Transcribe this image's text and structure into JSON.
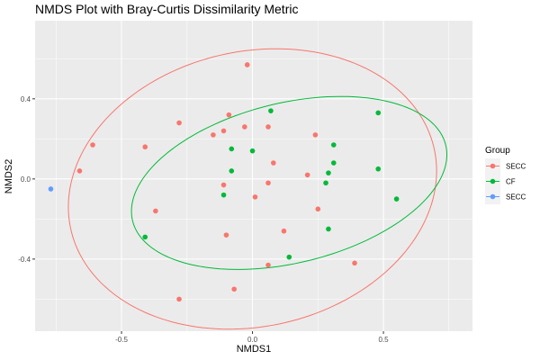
{
  "chart_data": {
    "type": "scatter",
    "title": "NMDS Plot with Bray-Curtis Dissimilarity Metric",
    "xlabel": "NMDS1",
    "ylabel": "NMDS2",
    "xlim": [
      -0.83,
      0.84
    ],
    "ylim": [
      -0.76,
      0.79
    ],
    "x_ticks": [
      {
        "value": -0.5,
        "label": "-0.5"
      },
      {
        "value": 0.0,
        "label": "0.0"
      },
      {
        "value": 0.5,
        "label": "0.5"
      }
    ],
    "y_ticks": [
      {
        "value": -0.4,
        "label": "-0.4"
      },
      {
        "value": 0.0,
        "label": "0.0"
      },
      {
        "value": 0.4,
        "label": "0.4"
      }
    ],
    "grid": true,
    "background": "#ebebeb",
    "legend": {
      "title": "Group",
      "position": "right",
      "entries": [
        {
          "label": "SECC",
          "color": "#f8766d"
        },
        {
          "label": "CF",
          "color": "#00ba38"
        },
        {
          "label": "SECC",
          "color": "#619cff"
        }
      ]
    },
    "series": [
      {
        "name": "SECC",
        "color": "#f8766d",
        "points": [
          [
            -0.02,
            0.57
          ],
          [
            -0.28,
            0.28
          ],
          [
            -0.09,
            0.32
          ],
          [
            -0.11,
            0.24
          ],
          [
            -0.15,
            0.22
          ],
          [
            -0.03,
            0.26
          ],
          [
            0.06,
            0.26
          ],
          [
            0.24,
            0.22
          ],
          [
            -0.61,
            0.17
          ],
          [
            -0.41,
            0.16
          ],
          [
            -0.66,
            0.04
          ],
          [
            0.08,
            0.08
          ],
          [
            0.21,
            0.02
          ],
          [
            -0.11,
            -0.03
          ],
          [
            0.06,
            -0.02
          ],
          [
            0.01,
            -0.09
          ],
          [
            -0.37,
            -0.16
          ],
          [
            0.25,
            -0.15
          ],
          [
            -0.1,
            -0.28
          ],
          [
            0.12,
            -0.26
          ],
          [
            0.06,
            -0.43
          ],
          [
            0.39,
            -0.42
          ],
          [
            -0.07,
            -0.55
          ],
          [
            -0.28,
            -0.6
          ]
        ]
      },
      {
        "name": "CF",
        "color": "#00ba38",
        "points": [
          [
            0.07,
            0.34
          ],
          [
            0.48,
            0.33
          ],
          [
            0.31,
            0.17
          ],
          [
            -0.08,
            0.15
          ],
          [
            0.0,
            0.14
          ],
          [
            0.31,
            0.08
          ],
          [
            0.48,
            0.05
          ],
          [
            0.29,
            0.03
          ],
          [
            -0.08,
            0.04
          ],
          [
            0.28,
            -0.02
          ],
          [
            -0.11,
            -0.08
          ],
          [
            0.55,
            -0.1
          ],
          [
            0.29,
            -0.25
          ],
          [
            -0.41,
            -0.29
          ],
          [
            0.14,
            -0.39
          ]
        ]
      },
      {
        "name": "SECC",
        "color": "#619cff",
        "points": [
          [
            -0.77,
            -0.05
          ]
        ]
      }
    ],
    "ellipses": [
      {
        "series": "SECC",
        "color": "#f8766d",
        "center": [
          0.0,
          -0.05
        ],
        "rx": 0.655,
        "ry": 0.745,
        "rotation_deg": -46
      },
      {
        "series": "CF",
        "color": "#00ba38",
        "center": [
          0.14,
          -0.02
        ],
        "rx": 0.63,
        "ry": 0.39,
        "rotation_deg": 22
      }
    ]
  }
}
